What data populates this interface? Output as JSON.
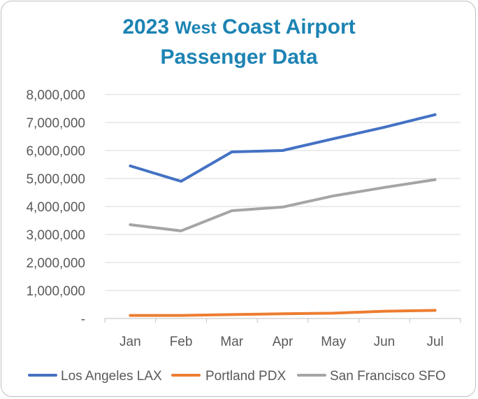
{
  "chart_data": {
    "type": "line",
    "title_parts": [
      "2023 ",
      "West",
      " Coast Airport",
      "Passenger Data"
    ],
    "xlabel": "",
    "ylabel": "",
    "categories": [
      "Jan",
      "Feb",
      "Mar",
      "Apr",
      "May",
      "Jun",
      "Jul"
    ],
    "ylim": [
      0,
      8000000
    ],
    "y_ticks": [
      0,
      1000000,
      2000000,
      3000000,
      4000000,
      5000000,
      6000000,
      7000000,
      8000000
    ],
    "y_tick_labels": [
      "-",
      "1,000,000",
      "2,000,000",
      "3,000,000",
      "4,000,000",
      "5,000,000",
      "6,000,000",
      "7,000,000",
      "8,000,000"
    ],
    "grid": true,
    "legend_position": "bottom",
    "series": [
      {
        "name": "Los Angeles LAX",
        "color": "#4472c4",
        "values": [
          5450000,
          4900000,
          5950000,
          6000000,
          6420000,
          6830000,
          7280000
        ]
      },
      {
        "name": "Portland PDX",
        "color": "#ed7d31",
        "values": [
          110000,
          110000,
          140000,
          170000,
          190000,
          260000,
          290000
        ]
      },
      {
        "name": "San Francisco SFO",
        "color": "#a5a5a5",
        "values": [
          3350000,
          3130000,
          3850000,
          3980000,
          4380000,
          4680000,
          4960000
        ]
      }
    ]
  }
}
